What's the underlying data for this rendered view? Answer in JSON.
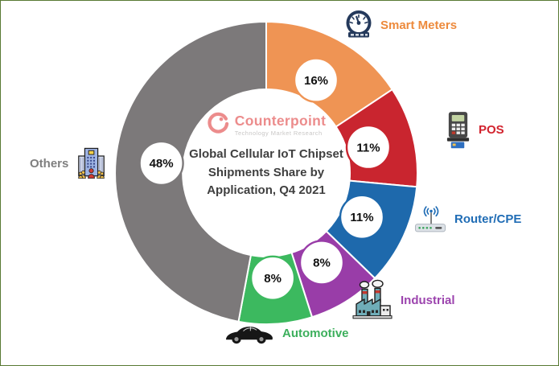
{
  "brand": {
    "name": "Counterpoint",
    "tagline": "Technology Market Research",
    "logo_color": "#EC8C8C",
    "tagline_color": "#C9C7C6"
  },
  "chart_data": {
    "type": "pie",
    "subtype": "donut",
    "title": "Global Cellular IoT Chipset Shipments Share by Application, Q4 2021",
    "title_display": "Global Cellular IoT Chipset\nShipments Share by\nApplication, Q4 2021",
    "title_color": "#3F3F3F",
    "start_angle": "top, clockwise",
    "gap_color": "#FFFFFF",
    "items": [
      {
        "label": "Smart Meters",
        "value": 16,
        "pct_label": "16%",
        "color": "#EF9454",
        "label_color": "#ED8A3C",
        "icon": "gauge-icon"
      },
      {
        "label": "POS",
        "value": 11,
        "pct_label": "11%",
        "color": "#C9252F",
        "label_color": "#D2232E",
        "icon": "pos-terminal-icon"
      },
      {
        "label": "Router/CPE",
        "value": 11,
        "pct_label": "11%",
        "color": "#1E69AC",
        "label_color": "#1F6CB5",
        "icon": "router-icon"
      },
      {
        "label": "Industrial",
        "value": 8,
        "pct_label": "8%",
        "color": "#993DA8",
        "label_color": "#9C44AE",
        "icon": "factory-icon"
      },
      {
        "label": "Automotive",
        "value": 8,
        "pct_label": "8%",
        "color": "#3CB95F",
        "label_color": "#3CAF5C",
        "icon": "car-icon"
      },
      {
        "label": "Others",
        "value": 48,
        "pct_label": "48%",
        "color": "#7C797A",
        "label_color": "#7F7F7F",
        "icon": "building-icon"
      }
    ]
  }
}
